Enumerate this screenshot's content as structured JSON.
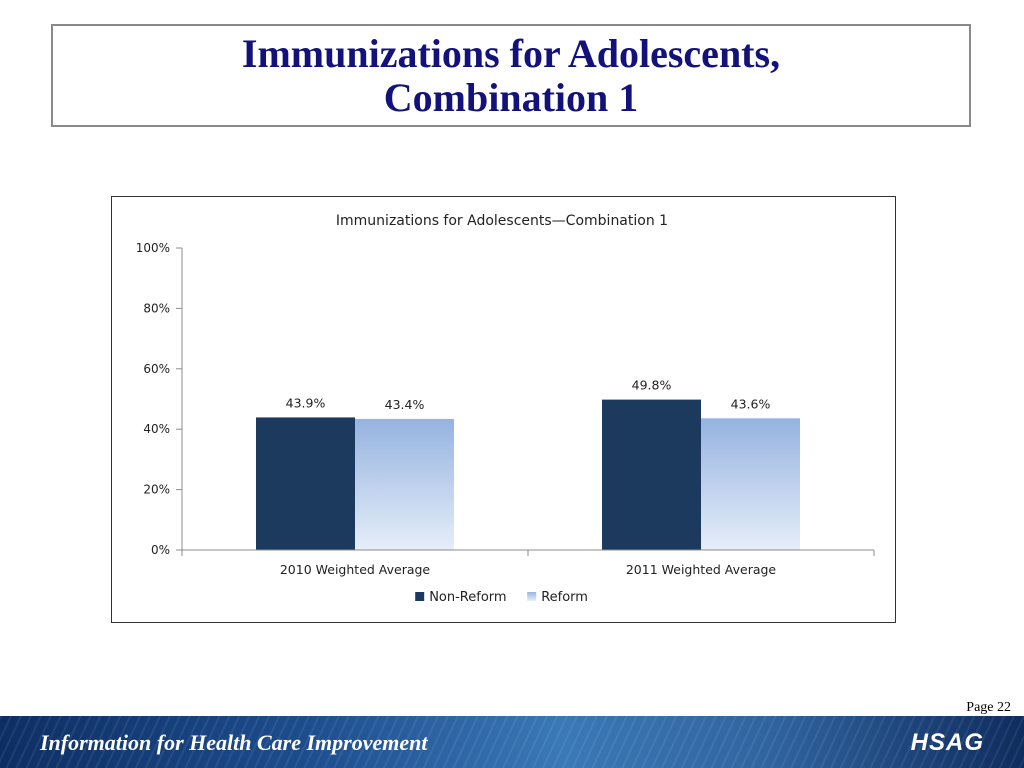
{
  "slide": {
    "title_lines": [
      "Immunizations for Adolescents,",
      "Combination 1"
    ],
    "page_number": "Page 22"
  },
  "footer": {
    "slogan": "Information for Health Care Improvement",
    "logo_text": "HSAG"
  },
  "chart_data": {
    "type": "bar",
    "title": "Immunizations for Adolescents—Combination 1",
    "categories": [
      "2010 Weighted Average",
      "2011 Weighted Average"
    ],
    "series": [
      {
        "name": "Non-Reform",
        "values": [
          43.9,
          49.8
        ],
        "labels": [
          "43.9%",
          "49.8%"
        ],
        "color": "#1b3a5e"
      },
      {
        "name": "Reform",
        "values": [
          43.4,
          43.6
        ],
        "labels": [
          "43.4%",
          "43.6%"
        ],
        "color": "#9db8e3"
      }
    ],
    "ylim": [
      0,
      100
    ],
    "yticks": [
      0,
      20,
      40,
      60,
      80,
      100
    ],
    "ytick_labels": [
      "0%",
      "20%",
      "40%",
      "60%",
      "80%",
      "100%"
    ],
    "legend": "bottom",
    "grid": false
  }
}
